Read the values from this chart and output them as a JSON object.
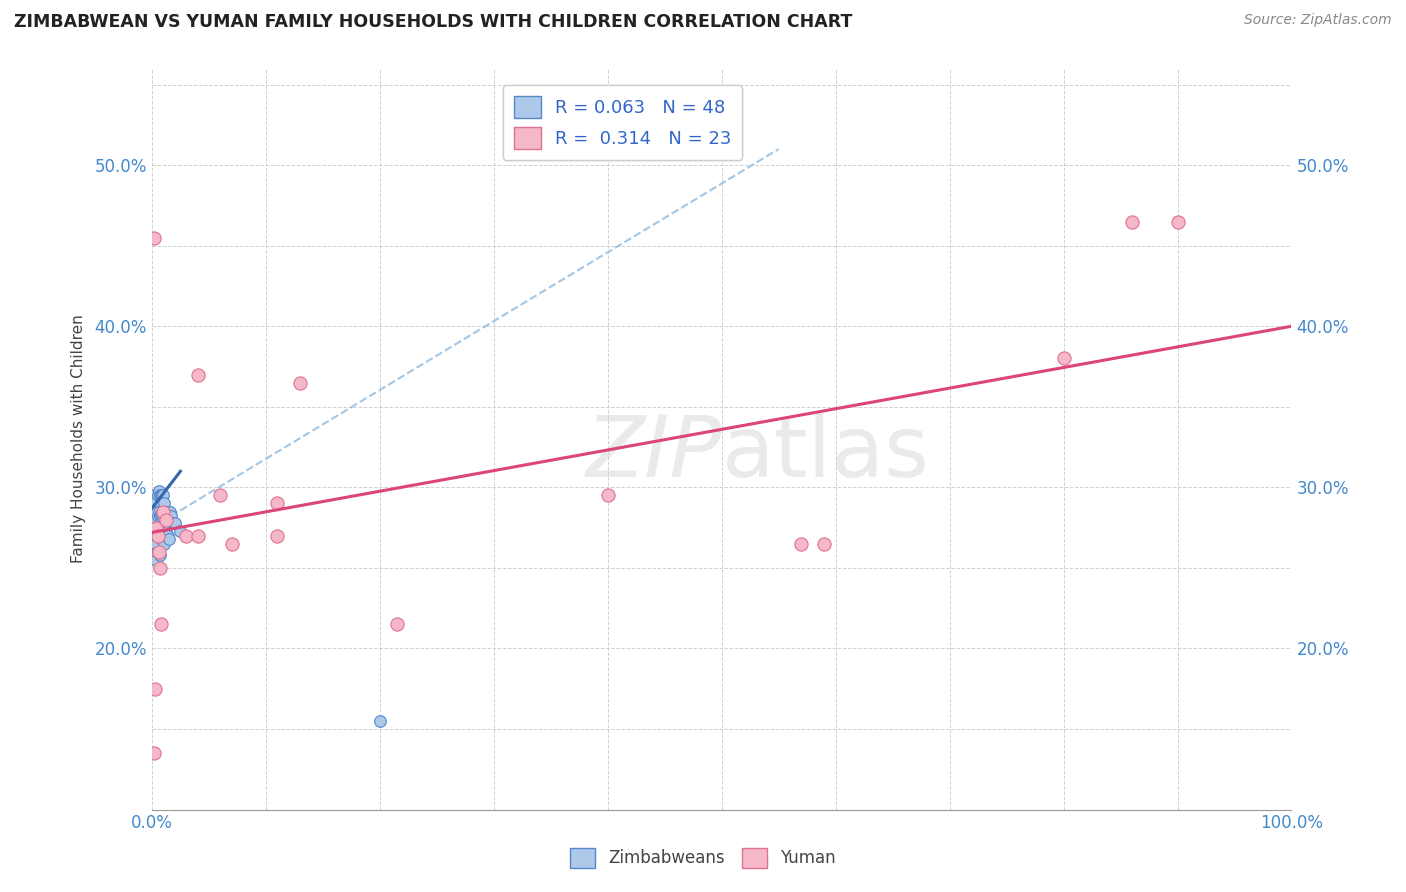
{
  "title": "ZIMBABWEAN VS YUMAN FAMILY HOUSEHOLDS WITH CHILDREN CORRELATION CHART",
  "source": "Source: ZipAtlas.com",
  "ylabel": "Family Households with Children",
  "xlim": [
    0.0,
    1.0
  ],
  "ylim": [
    0.1,
    0.56
  ],
  "blue_scatter_x": [
    0.002,
    0.002,
    0.003,
    0.003,
    0.003,
    0.004,
    0.004,
    0.004,
    0.004,
    0.005,
    0.005,
    0.005,
    0.005,
    0.006,
    0.006,
    0.006,
    0.006,
    0.007,
    0.007,
    0.007,
    0.007,
    0.008,
    0.008,
    0.008,
    0.009,
    0.009,
    0.009,
    0.01,
    0.01,
    0.01,
    0.011,
    0.011,
    0.011,
    0.012,
    0.012,
    0.013,
    0.013,
    0.014,
    0.014,
    0.015,
    0.015,
    0.016,
    0.017,
    0.018,
    0.019,
    0.02,
    0.025,
    0.2
  ],
  "blue_scatter_y": [
    0.295,
    0.28,
    0.29,
    0.275,
    0.265,
    0.285,
    0.275,
    0.265,
    0.255,
    0.295,
    0.282,
    0.272,
    0.26,
    0.298,
    0.285,
    0.272,
    0.26,
    0.295,
    0.283,
    0.27,
    0.258,
    0.295,
    0.282,
    0.268,
    0.295,
    0.282,
    0.268,
    0.295,
    0.28,
    0.268,
    0.29,
    0.278,
    0.265,
    0.285,
    0.272,
    0.285,
    0.27,
    0.285,
    0.27,
    0.285,
    0.268,
    0.285,
    0.282,
    0.278,
    0.278,
    0.278,
    0.273,
    0.155
  ],
  "pink_scatter_x": [
    0.002,
    0.003,
    0.004,
    0.005,
    0.006,
    0.007,
    0.008,
    0.01,
    0.012,
    0.03,
    0.04,
    0.06,
    0.07,
    0.11,
    0.13,
    0.4,
    0.57,
    0.59,
    0.8,
    0.86,
    0.9
  ],
  "pink_scatter_y": [
    0.135,
    0.175,
    0.275,
    0.27,
    0.26,
    0.25,
    0.215,
    0.285,
    0.28,
    0.27,
    0.27,
    0.295,
    0.265,
    0.27,
    0.365,
    0.295,
    0.265,
    0.265,
    0.38,
    0.465,
    0.465
  ],
  "pink_scatter2_x": [
    0.002,
    0.04,
    0.11,
    0.215
  ],
  "pink_scatter2_y": [
    0.455,
    0.37,
    0.29,
    0.215
  ],
  "blue_line_x": [
    0.0,
    0.025
  ],
  "blue_line_y": [
    0.287,
    0.31
  ],
  "pink_line_x": [
    0.0,
    1.0
  ],
  "pink_line_y": [
    0.272,
    0.4
  ],
  "dashed_line_x": [
    0.0,
    0.55
  ],
  "dashed_line_y": [
    0.275,
    0.51
  ],
  "R_blue": "0.063",
  "N_blue": "48",
  "R_pink": "0.314",
  "N_pink": "23",
  "blue_color": "#adc8e8",
  "pink_color": "#f5b8c8",
  "blue_dot_edge": "#5588cc",
  "pink_dot_edge": "#e07090",
  "blue_line_color": "#3366aa",
  "pink_line_color": "#dd4477",
  "dashed_color": "#8bb8dd",
  "grid_color": "#cccccc",
  "text_color": "#444444",
  "tick_color": "#4488cc",
  "watermark_color": "#cccccc",
  "legend_R_color": "#3366cc",
  "title_color": "#222222",
  "source_color": "#888888"
}
